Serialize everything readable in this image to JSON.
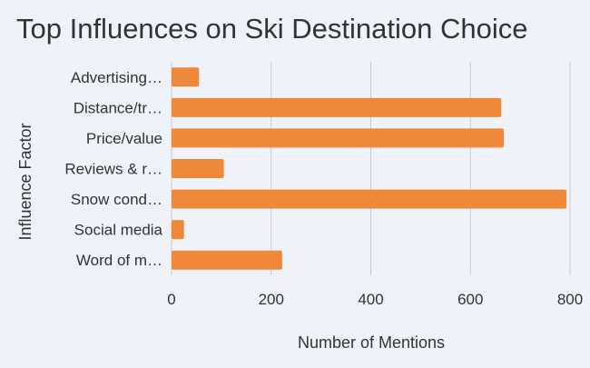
{
  "chart_data": {
    "type": "bar",
    "orientation": "horizontal",
    "title": "Top Influences on Ski Destination Choice",
    "xlabel": "Number of Mentions",
    "ylabel": "Influence Factor",
    "categories": [
      "Advertising…",
      "Distance/tr…",
      "Price/value",
      "Reviews & r…",
      "Snow cond…",
      "Social media",
      "Word of m…"
    ],
    "values": [
      55,
      662,
      667,
      105,
      793,
      25,
      222
    ],
    "xlim": [
      0,
      800
    ],
    "xticks": [
      0,
      200,
      400,
      600,
      800
    ],
    "grid": true,
    "legend": "none",
    "bar_color": "#f0883a",
    "grid_color": "#c9c9c9",
    "background_color": "#eff3f9"
  }
}
